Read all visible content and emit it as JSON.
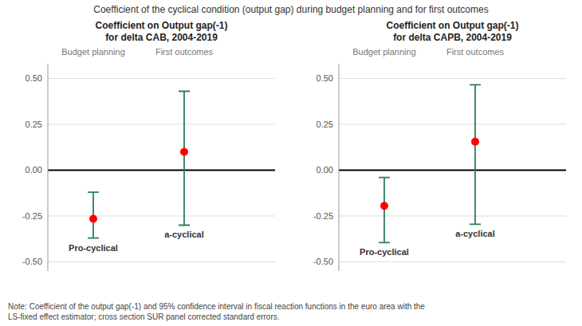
{
  "title": "Coefficient of the cyclical condition (output gap) during budget planning and for first outcomes",
  "note": "Note: Coefficient of the output gap(-1) and 95% confidence interval in fiscal reaction functions in the euro area with the\nLS-fixed effect estimator; cross section SUR panel corrected standard errors.",
  "chart_data": [
    {
      "type": "scatter",
      "title": "Coefficient on Output gap(-1)",
      "subtitle": "for delta CAB, 2004-2019",
      "categories": [
        "Budget planning",
        "First outcomes"
      ],
      "values": [
        -0.265,
        0.1
      ],
      "ci_low": [
        -0.37,
        -0.3
      ],
      "ci_high": [
        -0.12,
        0.43
      ],
      "annotations": [
        "Pro-cyclical",
        "a-cyclical"
      ],
      "color": "#ff0000",
      "ylim": [
        -0.55,
        0.58
      ],
      "yticks": [
        {
          "value": -0.5,
          "label": "-0.50"
        },
        -0.25,
        {
          "value": 0,
          "label": "0.00"
        },
        0.25,
        {
          "value": 0.5,
          "label": "0.50"
        }
      ],
      "grid": true
    },
    {
      "type": "scatter",
      "title": "Coefficient on Output gap(-1)",
      "subtitle": "for delta CAPB, 2004-2019",
      "categories": [
        "Budget planning",
        "First outcomes"
      ],
      "values": [
        -0.195,
        0.155
      ],
      "ci_low": [
        -0.395,
        -0.295
      ],
      "ci_high": [
        -0.04,
        0.465
      ],
      "annotations": [
        "Pro-cyclical",
        "a-cyclical"
      ],
      "color": "#ff0000",
      "ylim": [
        -0.55,
        0.58
      ],
      "yticks": [
        {
          "value": -0.5,
          "label": "-0.50"
        },
        -0.25,
        {
          "value": 0,
          "label": "0.00"
        },
        0.25,
        {
          "value": 0.5,
          "label": "0.50"
        }
      ],
      "grid": true
    }
  ]
}
